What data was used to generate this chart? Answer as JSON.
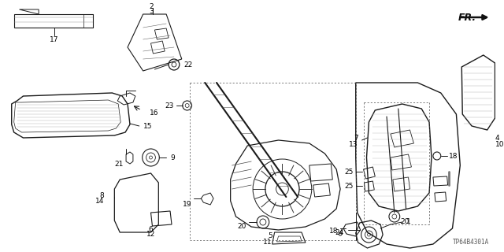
{
  "bg_color": "#ffffff",
  "line_color": "#1a1a1a",
  "label_color": "#000000",
  "watermark": "TP64B4301A",
  "fr_label": "FR.",
  "figsize": [
    6.4,
    3.2
  ],
  "dpi": 100
}
